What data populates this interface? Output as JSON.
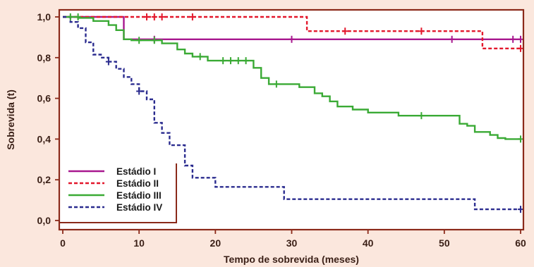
{
  "chart_data": {
    "type": "line",
    "subtype": "kaplan-meier step curves",
    "title": "",
    "xlabel": "Tempo de sobrevida (meses)",
    "ylabel": "Sobrevida (t)",
    "xlim": [
      0,
      60
    ],
    "ylim": [
      0,
      1
    ],
    "x_ticks": [
      "0",
      "10",
      "20",
      "30",
      "40",
      "50",
      "60"
    ],
    "y_ticks": [
      "0,0",
      "0,2",
      "0,4",
      "0,6",
      "0,8",
      "1,0"
    ],
    "grid": false,
    "legend_position": "bottom-left",
    "frame_color": "#8b2a1a",
    "background": "#fbe7dd",
    "plot_background": "#ffffff",
    "series": [
      {
        "name": "Estádio I",
        "color": "#a8188f",
        "dash": "solid",
        "steps": [
          [
            0,
            1.0
          ],
          [
            8,
            1.0
          ],
          [
            8,
            0.89
          ],
          [
            60,
            0.89
          ]
        ],
        "censored": [
          [
            12,
            0.89
          ],
          [
            30,
            0.89
          ],
          [
            51,
            0.89
          ],
          [
            59,
            0.89
          ],
          [
            60,
            0.89
          ]
        ]
      },
      {
        "name": "Estádio II",
        "color": "#e3182c",
        "dash": "dashed",
        "steps": [
          [
            0,
            1.0
          ],
          [
            32,
            1.0
          ],
          [
            32,
            0.93
          ],
          [
            55,
            0.93
          ],
          [
            55,
            0.845
          ],
          [
            60,
            0.845
          ]
        ],
        "censored": [
          [
            11,
            1.0
          ],
          [
            12,
            1.0
          ],
          [
            13,
            1.0
          ],
          [
            17,
            1.0
          ],
          [
            37,
            0.93
          ],
          [
            47,
            0.93
          ],
          [
            60,
            0.845
          ]
        ]
      },
      {
        "name": "Estádio III",
        "color": "#3aaa35",
        "dash": "solid",
        "steps": [
          [
            0,
            1.0
          ],
          [
            2,
            1.0
          ],
          [
            2,
            0.995
          ],
          [
            4,
            0.995
          ],
          [
            4,
            0.98
          ],
          [
            6,
            0.98
          ],
          [
            6,
            0.96
          ],
          [
            7,
            0.96
          ],
          [
            7,
            0.935
          ],
          [
            8,
            0.935
          ],
          [
            8,
            0.89
          ],
          [
            9,
            0.89
          ],
          [
            9,
            0.885
          ],
          [
            13,
            0.885
          ],
          [
            13,
            0.87
          ],
          [
            15,
            0.87
          ],
          [
            15,
            0.84
          ],
          [
            16,
            0.84
          ],
          [
            16,
            0.82
          ],
          [
            17,
            0.82
          ],
          [
            17,
            0.805
          ],
          [
            19,
            0.805
          ],
          [
            19,
            0.785
          ],
          [
            25,
            0.785
          ],
          [
            25,
            0.75
          ],
          [
            26,
            0.75
          ],
          [
            26,
            0.7
          ],
          [
            27,
            0.7
          ],
          [
            27,
            0.67
          ],
          [
            31,
            0.67
          ],
          [
            31,
            0.655
          ],
          [
            33,
            0.655
          ],
          [
            33,
            0.625
          ],
          [
            34,
            0.625
          ],
          [
            34,
            0.61
          ],
          [
            35,
            0.61
          ],
          [
            35,
            0.585
          ],
          [
            36,
            0.585
          ],
          [
            36,
            0.56
          ],
          [
            38,
            0.56
          ],
          [
            38,
            0.545
          ],
          [
            40,
            0.545
          ],
          [
            40,
            0.53
          ],
          [
            44,
            0.53
          ],
          [
            44,
            0.515
          ],
          [
            52,
            0.515
          ],
          [
            52,
            0.475
          ],
          [
            53,
            0.475
          ],
          [
            53,
            0.465
          ],
          [
            54,
            0.465
          ],
          [
            54,
            0.435
          ],
          [
            56,
            0.435
          ],
          [
            56,
            0.42
          ],
          [
            57,
            0.42
          ],
          [
            57,
            0.405
          ],
          [
            58,
            0.405
          ],
          [
            58,
            0.4
          ],
          [
            60,
            0.4
          ]
        ],
        "censored": [
          [
            1,
            1.0
          ],
          [
            2,
            1.0
          ],
          [
            10,
            0.885
          ],
          [
            12,
            0.885
          ],
          [
            18,
            0.805
          ],
          [
            21,
            0.785
          ],
          [
            22,
            0.785
          ],
          [
            23,
            0.785
          ],
          [
            24,
            0.785
          ],
          [
            28,
            0.67
          ],
          [
            47,
            0.515
          ],
          [
            60,
            0.4
          ]
        ]
      },
      {
        "name": "Estádio IV",
        "color": "#2b2c8f",
        "dash": "dashed",
        "steps": [
          [
            0,
            1.0
          ],
          [
            1,
            1.0
          ],
          [
            1,
            0.975
          ],
          [
            2,
            0.975
          ],
          [
            2,
            0.945
          ],
          [
            3,
            0.945
          ],
          [
            3,
            0.875
          ],
          [
            4,
            0.875
          ],
          [
            4,
            0.815
          ],
          [
            5,
            0.815
          ],
          [
            5,
            0.8
          ],
          [
            6,
            0.8
          ],
          [
            6,
            0.78
          ],
          [
            7,
            0.78
          ],
          [
            7,
            0.745
          ],
          [
            8,
            0.745
          ],
          [
            8,
            0.705
          ],
          [
            9,
            0.705
          ],
          [
            9,
            0.67
          ],
          [
            10,
            0.67
          ],
          [
            10,
            0.635
          ],
          [
            11,
            0.635
          ],
          [
            11,
            0.595
          ],
          [
            12,
            0.595
          ],
          [
            12,
            0.48
          ],
          [
            13,
            0.48
          ],
          [
            13,
            0.43
          ],
          [
            14,
            0.43
          ],
          [
            14,
            0.37
          ],
          [
            16,
            0.37
          ],
          [
            16,
            0.27
          ],
          [
            17,
            0.27
          ],
          [
            17,
            0.21
          ],
          [
            20,
            0.21
          ],
          [
            20,
            0.165
          ],
          [
            29,
            0.165
          ],
          [
            29,
            0.105
          ],
          [
            54,
            0.105
          ],
          [
            54,
            0.055
          ],
          [
            60,
            0.055
          ]
        ],
        "censored": [
          [
            6,
            0.78
          ],
          [
            10,
            0.635
          ],
          [
            60,
            0.055
          ]
        ]
      }
    ]
  }
}
